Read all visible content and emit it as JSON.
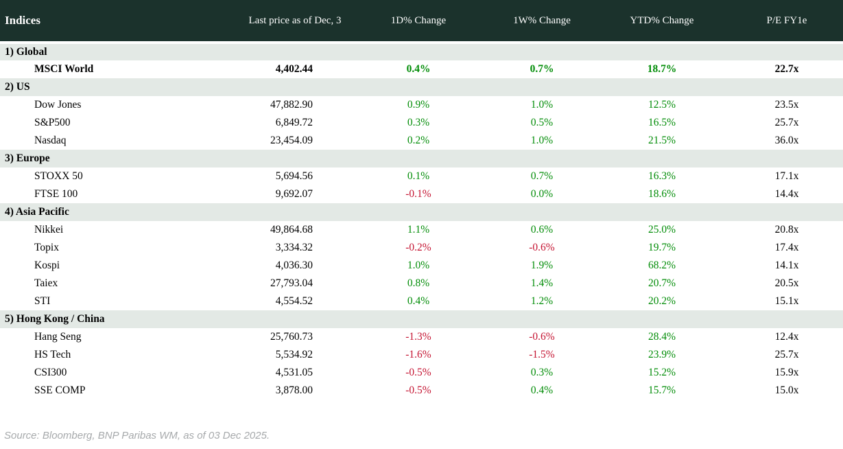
{
  "chart_data": {
    "type": "table",
    "title": "Indices",
    "columns": [
      "Indices",
      "Last price as of Dec, 3",
      "1D% Change",
      "1W% Change",
      "YTD% Change",
      "P/E FY1e"
    ],
    "sections": [
      {
        "label": "1) Global",
        "rows": [
          {
            "name": "MSCI World",
            "last_price": "4,402.44",
            "change_1d": "0.4%",
            "change_1w": "0.7%",
            "change_ytd": "18.7%",
            "pe_fy1e": "22.7x",
            "bold": true
          }
        ]
      },
      {
        "label": "2) US",
        "rows": [
          {
            "name": "Dow Jones",
            "last_price": "47,882.90",
            "change_1d": "0.9%",
            "change_1w": "1.0%",
            "change_ytd": "12.5%",
            "pe_fy1e": "23.5x"
          },
          {
            "name": "S&P500",
            "last_price": "6,849.72",
            "change_1d": "0.3%",
            "change_1w": "0.5%",
            "change_ytd": "16.5%",
            "pe_fy1e": "25.7x"
          },
          {
            "name": "Nasdaq",
            "last_price": "23,454.09",
            "change_1d": "0.2%",
            "change_1w": "1.0%",
            "change_ytd": "21.5%",
            "pe_fy1e": "36.0x"
          }
        ]
      },
      {
        "label": "3) Europe",
        "rows": [
          {
            "name": "STOXX 50",
            "last_price": "5,694.56",
            "change_1d": "0.1%",
            "change_1w": "0.7%",
            "change_ytd": "16.3%",
            "pe_fy1e": "17.1x"
          },
          {
            "name": "FTSE 100",
            "last_price": "9,692.07",
            "change_1d": "-0.1%",
            "change_1w": "0.0%",
            "change_ytd": "18.6%",
            "pe_fy1e": "14.4x"
          }
        ]
      },
      {
        "label": "4) Asia Pacific",
        "rows": [
          {
            "name": "Nikkei",
            "last_price": "49,864.68",
            "change_1d": "1.1%",
            "change_1w": "0.6%",
            "change_ytd": "25.0%",
            "pe_fy1e": "20.8x"
          },
          {
            "name": "Topix",
            "last_price": "3,334.32",
            "change_1d": "-0.2%",
            "change_1w": "-0.6%",
            "change_ytd": "19.7%",
            "pe_fy1e": "17.4x"
          },
          {
            "name": "Kospi",
            "last_price": "4,036.30",
            "change_1d": "1.0%",
            "change_1w": "1.9%",
            "change_ytd": "68.2%",
            "pe_fy1e": "14.1x"
          },
          {
            "name": "Taiex",
            "last_price": "27,793.04",
            "change_1d": "0.8%",
            "change_1w": "1.4%",
            "change_ytd": "20.7%",
            "pe_fy1e": "20.5x"
          },
          {
            "name": "STI",
            "last_price": "4,554.52",
            "change_1d": "0.4%",
            "change_1w": "1.2%",
            "change_ytd": "20.2%",
            "pe_fy1e": "15.1x"
          }
        ]
      },
      {
        "label": "5) Hong Kong / China",
        "rows": [
          {
            "name": "Hang Seng",
            "last_price": "25,760.73",
            "change_1d": "-1.3%",
            "change_1w": "-0.6%",
            "change_ytd": "28.4%",
            "pe_fy1e": "12.4x"
          },
          {
            "name": "HS Tech",
            "last_price": "5,534.92",
            "change_1d": "-1.6%",
            "change_1w": "-1.5%",
            "change_ytd": "23.9%",
            "pe_fy1e": "25.7x"
          },
          {
            "name": "CSI300",
            "last_price": "4,531.05",
            "change_1d": "-0.5%",
            "change_1w": "0.3%",
            "change_ytd": "15.2%",
            "pe_fy1e": "15.9x"
          },
          {
            "name": "SSE COMP",
            "last_price": "3,878.00",
            "change_1d": "-0.5%",
            "change_1w": "0.4%",
            "change_ytd": "15.7%",
            "pe_fy1e": "15.0x"
          }
        ]
      }
    ]
  },
  "footer": {
    "source_note": "Source: Bloomberg, BNP Paribas WM, as of 03 Dec 2025."
  },
  "colors": {
    "header_bg": "#1b322c",
    "band_bg": "#e3e9e5",
    "positive": "#008c06",
    "negative": "#c41230",
    "source_text": "#a6a9ab"
  }
}
